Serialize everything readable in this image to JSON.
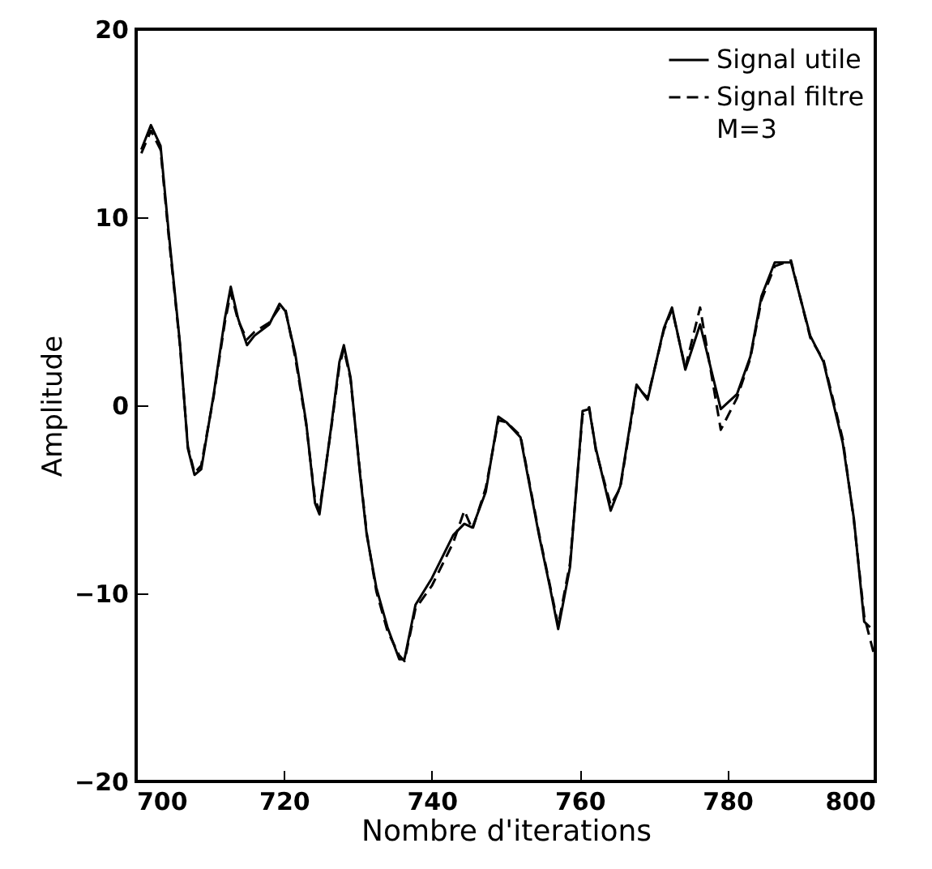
{
  "chart_data": {
    "type": "line",
    "xlabel": "Nombre d'iterations",
    "ylabel": "Amplitude",
    "xlim": [
      700,
      800
    ],
    "ylim": [
      -20,
      20
    ],
    "xticks": [
      700,
      720,
      740,
      760,
      780,
      800
    ],
    "yticks": [
      -20,
      -10,
      0,
      10,
      20
    ],
    "grid": false,
    "legend": "top right",
    "marker": "none",
    "annotations": [
      "M=3"
    ],
    "series": [
      {
        "name": "Signal utile",
        "color": "#000000",
        "line_style": "solid",
        "x": [
          700.7,
          702,
          703.3,
          704.4,
          705.9,
          707,
          707.9,
          708.8,
          710.5,
          712,
          712.8,
          713.8,
          715,
          716,
          718,
          719.4,
          720.2,
          721.5,
          723,
          724.2,
          724.8,
          726.4,
          727.5,
          728.1,
          729,
          730.3,
          731.2,
          732.5,
          734,
          735.6,
          736.3,
          737.8,
          740,
          742.9,
          744.4,
          745.5,
          747.3,
          749,
          750.1,
          752,
          754.5,
          756,
          757.1,
          758.7,
          760.4,
          761.3,
          762.2,
          764.2,
          765.5,
          767.7,
          769.2,
          771.4,
          772.5,
          774.3,
          776.3,
          779.1,
          781.3,
          783.1,
          784.6,
          786.4,
          788.6,
          791.2,
          793,
          795.6,
          797.1,
          798.5,
          799.3
        ],
        "values": [
          13.6,
          14.9,
          13.8,
          9.2,
          3.4,
          -2.3,
          -3.7,
          -3.4,
          0.6,
          4.6,
          6.3,
          4.6,
          3.2,
          3.7,
          4.3,
          5.4,
          5.0,
          2.8,
          -0.9,
          -5.2,
          -5.8,
          -1.1,
          2.3,
          3.2,
          1.5,
          -3.7,
          -6.9,
          -9.7,
          -11.8,
          -13.5,
          -13.5,
          -10.6,
          -9.2,
          -6.9,
          -6.3,
          -6.5,
          -4.6,
          -0.6,
          -0.9,
          -1.7,
          -6.9,
          -9.7,
          -11.9,
          -8.6,
          -0.3,
          -0.2,
          -2.3,
          -5.6,
          -4.3,
          1.1,
          0.3,
          4.1,
          5.2,
          1.9,
          4.3,
          -0.2,
          0.6,
          2.6,
          5.8,
          7.6,
          7.6,
          3.7,
          2.3,
          -2.0,
          -6.0,
          -11.5,
          -11.8
        ]
      },
      {
        "name": "Signal filtre",
        "color": "#000000",
        "line_style": "dashed",
        "x": [
          700.7,
          702,
          703.3,
          704.4,
          705.9,
          707,
          707.9,
          708.8,
          710.5,
          712,
          712.8,
          713.8,
          715,
          716,
          718,
          719.4,
          720.2,
          721.5,
          723,
          724.2,
          724.8,
          726.4,
          727.5,
          728.1,
          729,
          730.3,
          731.2,
          732.5,
          734,
          735.6,
          736.3,
          737.8,
          740,
          742.9,
          744.4,
          745.5,
          747.3,
          749,
          750.1,
          752,
          754.5,
          756,
          757.1,
          758.7,
          760.4,
          761.3,
          762.2,
          764.2,
          765.5,
          767.7,
          769.2,
          771.4,
          772.5,
          774.3,
          776.3,
          779.1,
          781.3,
          783.1,
          784.6,
          786.4,
          788.6,
          791.2,
          793,
          795.6,
          797.1,
          798.5,
          799.8
        ],
        "values": [
          13.4,
          14.6,
          13.6,
          9.0,
          3.3,
          -2.2,
          -3.6,
          -3.2,
          0.5,
          4.4,
          6.0,
          4.5,
          3.5,
          3.9,
          4.4,
          5.2,
          5.1,
          2.6,
          -1.0,
          -5.0,
          -5.6,
          -1.2,
          2.1,
          3.0,
          1.4,
          -3.6,
          -6.8,
          -9.9,
          -12.0,
          -13.3,
          -13.6,
          -10.8,
          -9.6,
          -7.3,
          -5.6,
          -6.6,
          -4.4,
          -0.8,
          -0.9,
          -1.6,
          -6.8,
          -9.6,
          -11.7,
          -8.4,
          -0.5,
          -0.1,
          -2.4,
          -5.3,
          -4.4,
          1.0,
          0.4,
          4.0,
          5.1,
          2.0,
          5.2,
          -1.3,
          0.4,
          2.5,
          5.6,
          7.4,
          7.7,
          3.6,
          2.4,
          -1.8,
          -6.1,
          -11.2,
          -13.2
        ]
      }
    ]
  }
}
